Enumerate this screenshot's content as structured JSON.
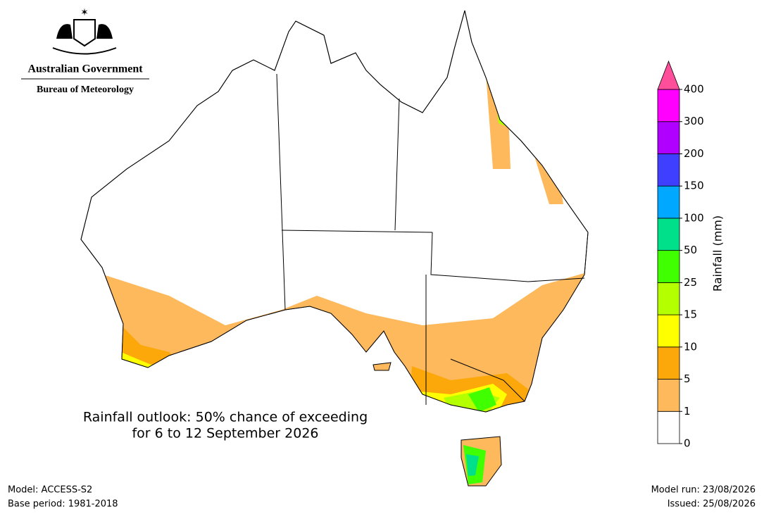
{
  "header": {
    "government": "Australian Government",
    "agency": "Bureau of Meteorology"
  },
  "title": {
    "line1": "Rainfall outlook: 50% chance of exceeding",
    "line2": "for 6 to 12 September 2026"
  },
  "footer": {
    "model": "Model: ACCESS-S2",
    "base_period": "Base period: 1981-2018",
    "model_run": "Model run: 23/08/2026",
    "issued": "Issued: 25/08/2026"
  },
  "legend": {
    "title": "Rainfall (mm)",
    "ticks": [
      0,
      1,
      5,
      10,
      15,
      25,
      50,
      100,
      150,
      200,
      300,
      400
    ],
    "colors": [
      "#ffffff",
      "#fdb95c",
      "#fca80a",
      "#ffff00",
      "#b4ff00",
      "#40ff00",
      "#00e08a",
      "#00a8ff",
      "#3e3fff",
      "#b000ff",
      "#ff00ff"
    ],
    "over_color": "#ff4f9a"
  }
}
